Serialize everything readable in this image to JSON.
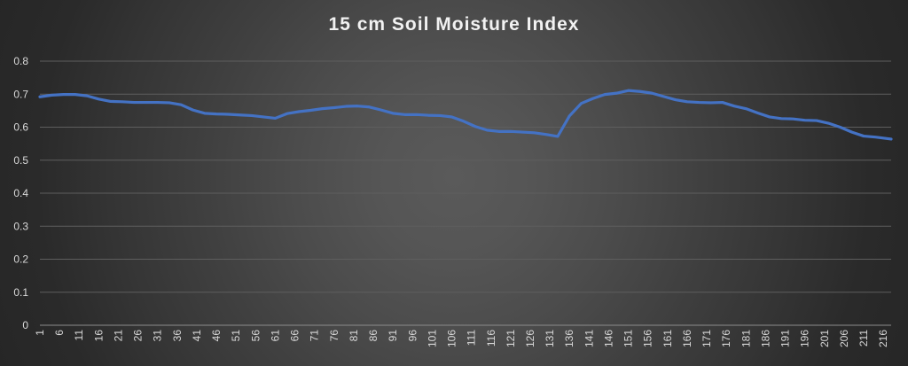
{
  "chart_data": {
    "type": "line",
    "title": "15 cm Soil Moisture Index",
    "xlabel": "",
    "ylabel": "",
    "ylim": [
      0,
      0.8
    ],
    "yticks": [
      "0",
      "0.1",
      "0.2",
      "0.3",
      "0.4",
      "0.5",
      "0.6",
      "0.7",
      "0.8"
    ],
    "xlim": [
      1,
      218
    ],
    "xticks": [
      "1",
      "6",
      "11",
      "16",
      "21",
      "26",
      "31",
      "36",
      "41",
      "46",
      "51",
      "56",
      "61",
      "66",
      "71",
      "76",
      "81",
      "86",
      "91",
      "96",
      "101",
      "106",
      "111",
      "116",
      "121",
      "126",
      "131",
      "136",
      "141",
      "146",
      "151",
      "156",
      "161",
      "166",
      "171",
      "176",
      "181",
      "186",
      "191",
      "196",
      "201",
      "206",
      "211",
      "216"
    ],
    "grid": true,
    "legend": "none",
    "line_color": "#4472c4",
    "series": [
      {
        "x": [
          1,
          4,
          7,
          10,
          13,
          16,
          19,
          22,
          25,
          28,
          31,
          34,
          37,
          40,
          43,
          46,
          49,
          52,
          55,
          58,
          61,
          64,
          67,
          70,
          73,
          76,
          79,
          82,
          85,
          88,
          91,
          94,
          97,
          100,
          103,
          106,
          109,
          112,
          115,
          118,
          121,
          124,
          127,
          130,
          133,
          136,
          139,
          142,
          145,
          148,
          151,
          154,
          157,
          160,
          163,
          166,
          169,
          172,
          175,
          178,
          181,
          184,
          187,
          190,
          193,
          196,
          199,
          202,
          205,
          208,
          211,
          214,
          218
        ],
        "values": [
          0.692,
          0.697,
          0.699,
          0.699,
          0.695,
          0.685,
          0.678,
          0.677,
          0.675,
          0.675,
          0.675,
          0.674,
          0.668,
          0.652,
          0.642,
          0.64,
          0.639,
          0.637,
          0.635,
          0.631,
          0.627,
          0.641,
          0.647,
          0.651,
          0.656,
          0.659,
          0.663,
          0.664,
          0.661,
          0.652,
          0.642,
          0.638,
          0.638,
          0.636,
          0.635,
          0.631,
          0.618,
          0.602,
          0.591,
          0.587,
          0.587,
          0.585,
          0.583,
          0.578,
          0.572,
          0.634,
          0.672,
          0.687,
          0.699,
          0.703,
          0.711,
          0.708,
          0.703,
          0.693,
          0.683,
          0.677,
          0.675,
          0.674,
          0.675,
          0.664,
          0.656,
          0.643,
          0.631,
          0.626,
          0.625,
          0.621,
          0.62,
          0.612,
          0.6,
          0.585,
          0.573,
          0.57,
          0.564
        ]
      }
    ]
  }
}
